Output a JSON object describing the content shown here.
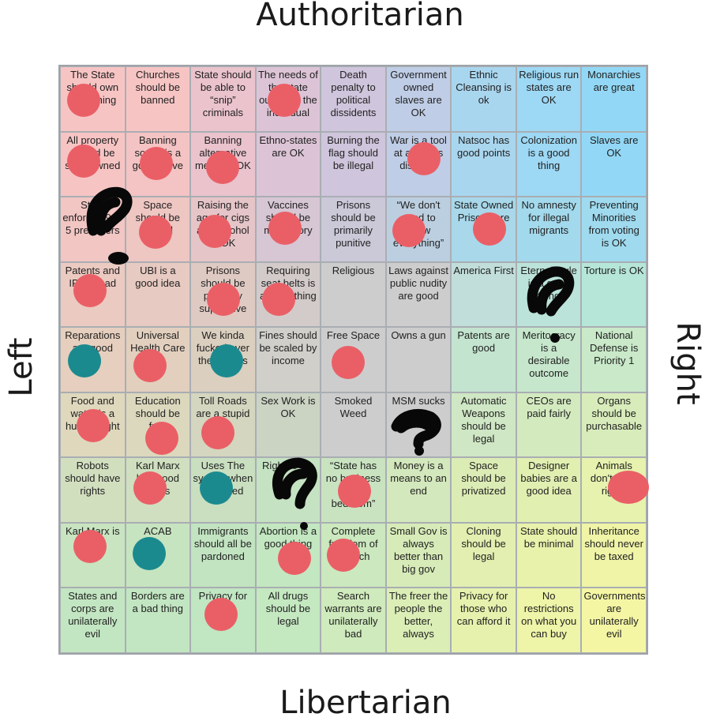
{
  "axes": {
    "top": "Authoritarian",
    "bottom": "Libertarian",
    "left": "Left",
    "right": "Right"
  },
  "rows": [
    [
      "The State should own everything",
      "Churches should be banned",
      "State should be able to “snip” criminals",
      "The needs of the state outweigh the individual",
      "Death penalty to political dissidents",
      "Government owned slaves are OK",
      "Ethnic Cleansing is ok",
      "Religious run states are OK",
      "Monarchies are great"
    ],
    [
      "All property should be state owned",
      "Banning sodas is a good move",
      "Banning alternative media is OK",
      "Ethno-states are OK",
      "Burning the flag should be illegal",
      "War is a tool at a state's disposal",
      "Natsoc has good points",
      "Colonization is a good thing",
      "Slaves are OK"
    ],
    [
      "State enforced 9 to 5 preachers",
      "Space should be owned",
      "Raising the age for cigs and alcohol is OK",
      "Vaccines should be mandatory",
      "Prisons should be primarily punitive",
      "“We don't need to know everything”",
      "State Owned Prisons are OK",
      "No amnesty for illegal migrants",
      "Preventing Minorities from voting is OK"
    ],
    [
      "Patents and IP are bad",
      "UBI is a good idea",
      "Prisons should be primarily supportive",
      "Requiring seat belts is a good thing",
      "Religious",
      "Laws against public nudity are good",
      "America First",
      "Eternal Rule is a good thing",
      "Torture is OK"
    ],
    [
      "Reparations are good",
      "Universal Health Care",
      "We kinda fucked over the natives",
      "Fines should be scaled by income",
      "Free Space",
      "Owns a gun",
      "Patents are good",
      "Meritocracy is a desirable outcome",
      "National Defense is Priority 1"
    ],
    [
      "Food and water is a human right",
      "Education should be free",
      "Toll Roads are a stupid",
      "Sex Work is OK",
      "Smoked Weed",
      "MSM sucks",
      "Automatic Weapons should be legal",
      "CEOs are paid fairly",
      "Organs should be purchasable"
    ],
    [
      "Robots should have rights",
      "Karl Marx had good ideas",
      "Uses The system when it worked",
      "Right to die",
      "“State has no business in my bedroom”",
      "Money is a means to an end",
      "Space should be privatized",
      "Designer babies are a good idea",
      "Animals don't have rights"
    ],
    [
      "Karl Marx is right",
      "ACAB",
      "Immigrants should all be pardoned",
      "Abortion is a good thing",
      "Complete freedom of speech",
      "Small Gov is always better than big gov",
      "Cloning should be legal",
      "State should be minimal",
      "Inheritance should never be taxed"
    ],
    [
      "States and corps are unilaterally evil",
      "Borders are a bad thing",
      "Privacy for all",
      "All drugs should be legal",
      "Search warrants are unilaterally bad",
      "The freer the people the better, always",
      "Privacy for those who can afford it",
      "No restrictions on what you can buy",
      "Governments are unilaterally evil"
    ]
  ],
  "colors": [
    [
      "#f7c4c4",
      "#f7c4c4",
      "#eac3cd",
      "#dcc4d6",
      "#cfc5dc",
      "#bfcde6",
      "#a9d6ef",
      "#9dd8f4",
      "#92d8f6"
    ],
    [
      "#f7c4c4",
      "#f4c3c3",
      "#eac3cd",
      "#dcc4d6",
      "#cfc5dc",
      "#bfcde6",
      "#a9d6ef",
      "#9dd8f4",
      "#92d8f6"
    ],
    [
      "#f1c6c3",
      "#eec6c2",
      "#e6c5c9",
      "#d7c6d4",
      "#cbc8d8",
      "#bccfe0",
      "#a8d8ea",
      "#a3d9ec",
      "#9fdaef"
    ],
    [
      "#ebcac1",
      "#e7cac1",
      "#dfcac3",
      "#d3cbca",
      "#cdcdcd",
      "#cdcdcd",
      "#c2deda",
      "#bbe3d9",
      "#b6e6d8"
    ],
    [
      "#e6cfbe",
      "#e2cfbe",
      "#dbcfbf",
      "#d0cfca",
      "#cdcdcd",
      "#cdcdcd",
      "#c3e4cf",
      "#c6e7cc",
      "#c9e9c9"
    ],
    [
      "#dfd8bd",
      "#dcd8bd",
      "#d4d6bf",
      "#cbd3c3",
      "#cdcdcd",
      "#cdcdcd",
      "#cfe7c4",
      "#d3eabf",
      "#d8ecbb"
    ],
    [
      "#d2dfbf",
      "#cfdfbf",
      "#c9dfc0",
      "#c5e2c2",
      "#c9e3c0",
      "#d3e8bc",
      "#dcecb5",
      "#e1efb1",
      "#e6f2ae"
    ],
    [
      "#c8e4c0",
      "#c6e4c0",
      "#c2e4c1",
      "#c3e7c0",
      "#cbe8be",
      "#d7ebb8",
      "#e2efb0",
      "#e9f2ab",
      "#eff4a7"
    ],
    [
      "#c3e6c2",
      "#c2e6c2",
      "#c0e6c2",
      "#c4e8c0",
      "#cfeabc",
      "#dbeeb6",
      "#e6f1ad",
      "#eef4a8",
      "#f4f6a4"
    ]
  ],
  "marker_colors": {
    "red": "#ea5f66",
    "teal": "#1b8a8f",
    "scribble": "#080808"
  }
}
